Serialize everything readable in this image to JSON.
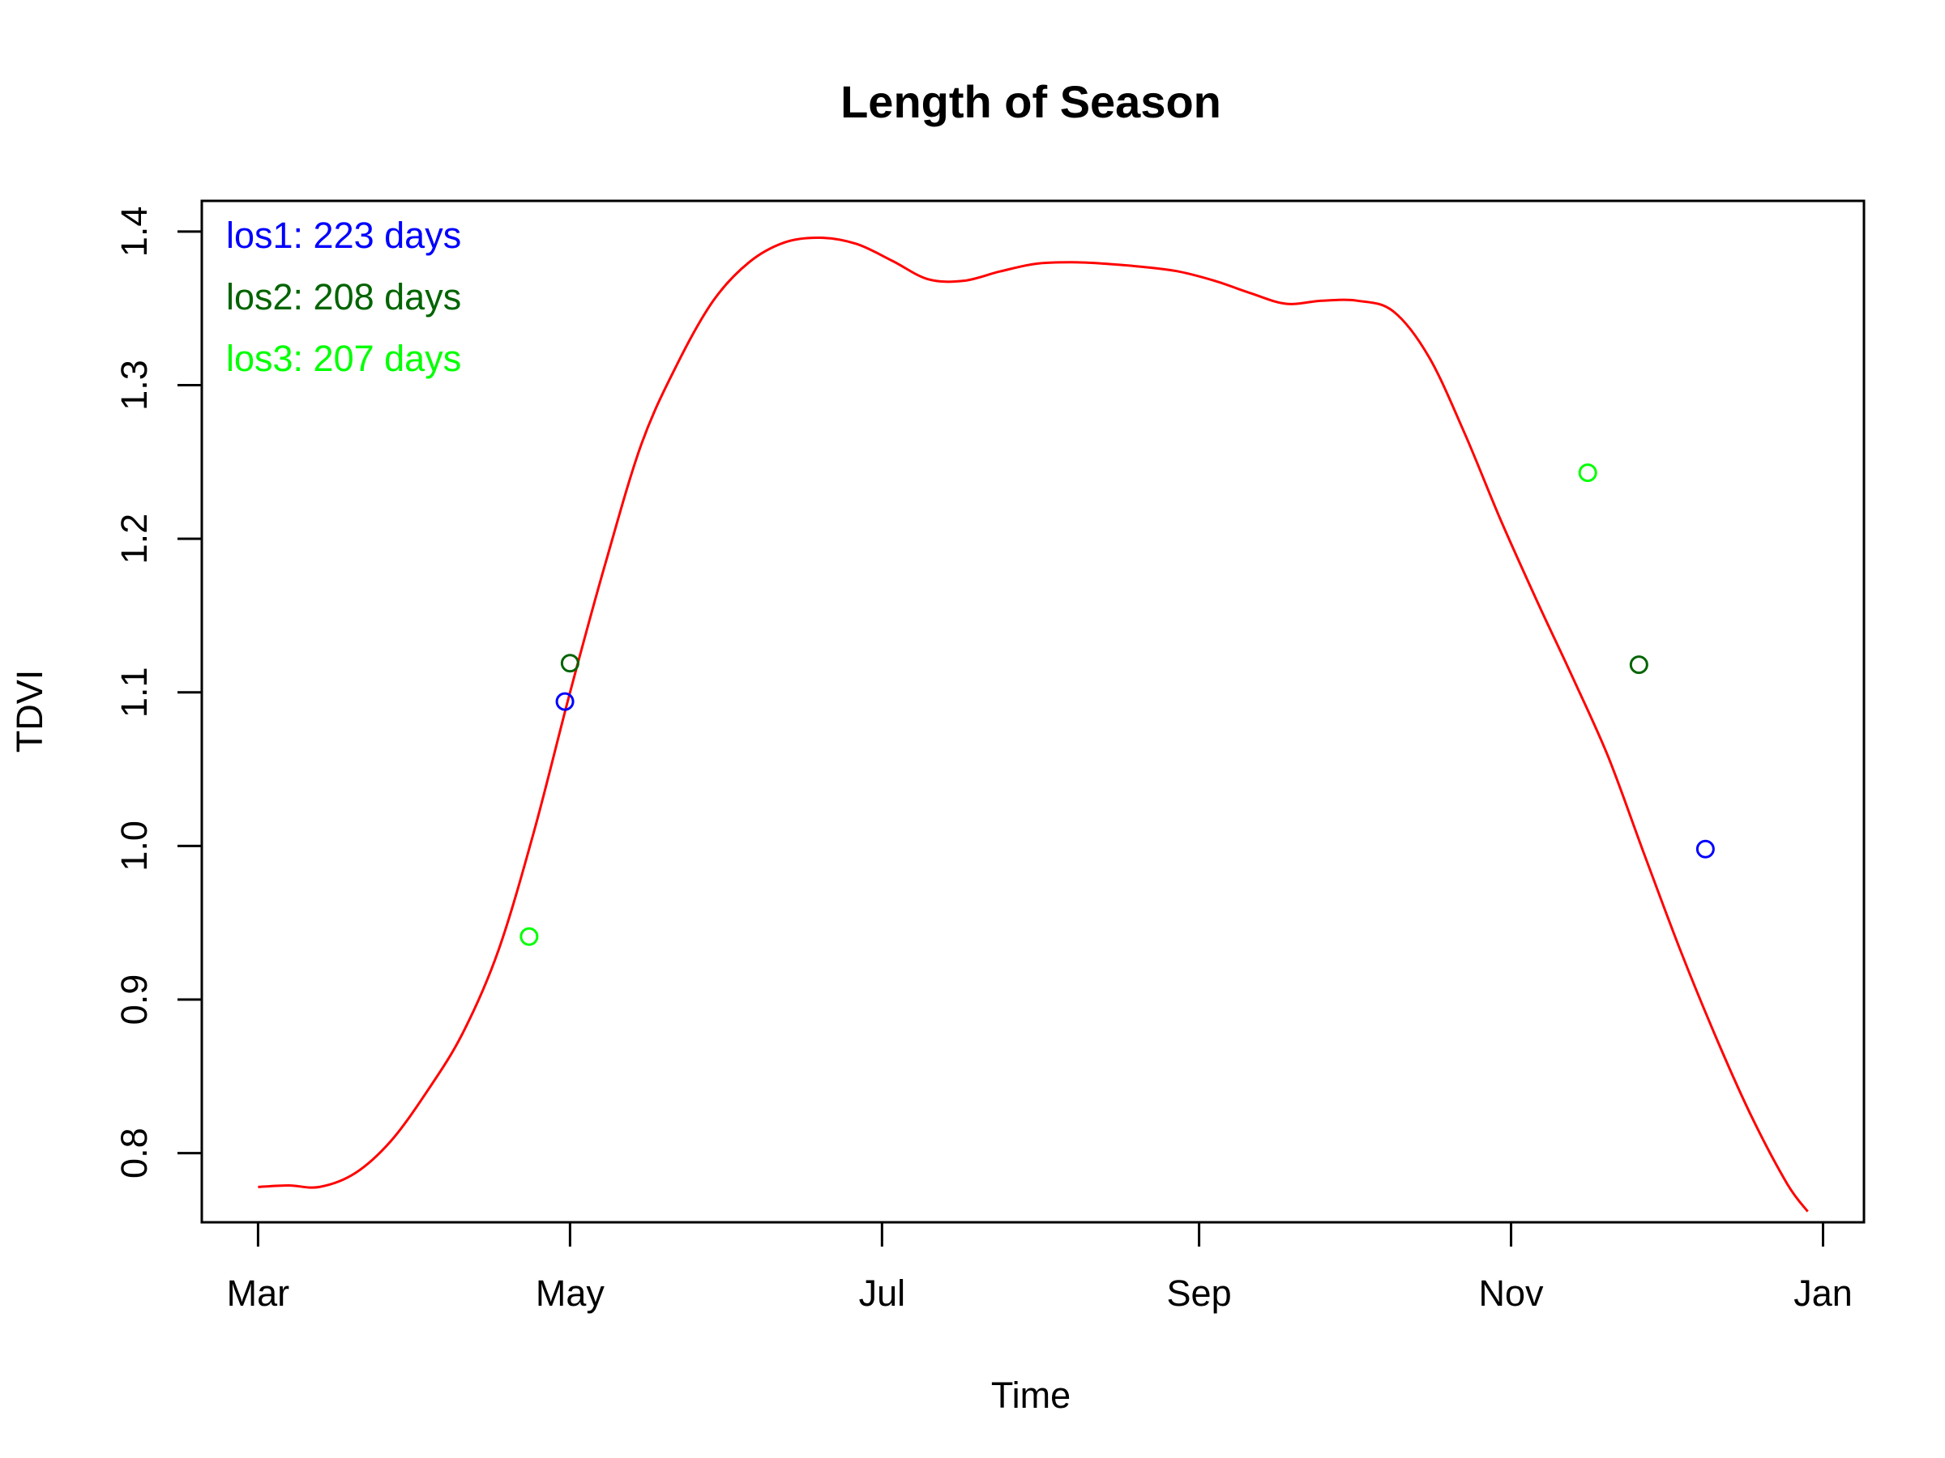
{
  "chart_data": {
    "type": "line",
    "title": "Length of Season",
    "xlabel": "Time",
    "ylabel": "TDVI",
    "x_ticks": [
      {
        "label": "Mar",
        "date": "2000-03-01"
      },
      {
        "label": "May",
        "date": "2000-05-01"
      },
      {
        "label": "Jul",
        "date": "2000-07-01"
      },
      {
        "label": "Sep",
        "date": "2000-09-01"
      },
      {
        "label": "Nov",
        "date": "2000-11-01"
      },
      {
        "label": "Jan",
        "date": "2001-01-01"
      }
    ],
    "xlim": [
      "2000-02-19",
      "2001-01-09"
    ],
    "ylim": [
      0.755,
      1.42
    ],
    "y_ticks": [
      0.8,
      0.9,
      1.0,
      1.1,
      1.2,
      1.3,
      1.4
    ],
    "y_tick_labels": [
      "0.8",
      "0.9",
      "1.0",
      "1.1",
      "1.2",
      "1.3",
      "1.4"
    ],
    "grid": false,
    "legend_position": "top-left",
    "curve": {
      "color": "#ff0000",
      "x": [
        "2000-03-01",
        "2000-03-07",
        "2000-03-13",
        "2000-03-20",
        "2000-03-27",
        "2000-04-03",
        "2000-04-10",
        "2000-04-17",
        "2000-04-24",
        "2000-05-01",
        "2000-05-08",
        "2000-05-15",
        "2000-05-22",
        "2000-05-29",
        "2000-06-05",
        "2000-06-12",
        "2000-06-19",
        "2000-06-26",
        "2000-07-03",
        "2000-07-10",
        "2000-07-17",
        "2000-07-24",
        "2000-07-31",
        "2000-08-07",
        "2000-08-14",
        "2000-08-21",
        "2000-08-28",
        "2000-09-04",
        "2000-09-11",
        "2000-09-18",
        "2000-09-25",
        "2000-10-02",
        "2000-10-09",
        "2000-10-16",
        "2000-10-23",
        "2000-10-30",
        "2000-11-06",
        "2000-11-13",
        "2000-11-20",
        "2000-11-27",
        "2000-12-04",
        "2000-12-11",
        "2000-12-18",
        "2000-12-25",
        "2000-12-29"
      ],
      "y": [
        0.778,
        0.779,
        0.778,
        0.787,
        0.808,
        0.84,
        0.878,
        0.932,
        1.01,
        1.1,
        1.185,
        1.262,
        1.314,
        1.355,
        1.38,
        1.393,
        1.396,
        1.392,
        1.381,
        1.369,
        1.368,
        1.374,
        1.379,
        1.38,
        1.379,
        1.377,
        1.374,
        1.368,
        1.36,
        1.353,
        1.355,
        1.355,
        1.348,
        1.318,
        1.268,
        1.212,
        1.16,
        1.11,
        1.058,
        0.995,
        0.933,
        0.876,
        0.824,
        0.78,
        0.762
      ]
    },
    "series": [
      {
        "name": "los1: 223 days",
        "color": "#0000ff",
        "x": [
          "2000-04-30",
          "2000-12-09"
        ],
        "y": [
          1.094,
          0.998
        ]
      },
      {
        "name": "los2: 208 days",
        "color": "#006400",
        "x": [
          "2000-05-01",
          "2000-11-26"
        ],
        "y": [
          1.119,
          1.118
        ]
      },
      {
        "name": "los3: 207 days",
        "color": "#00ff00",
        "x": [
          "2000-04-23",
          "2000-11-16"
        ],
        "y": [
          0.941,
          1.243
        ]
      }
    ]
  }
}
